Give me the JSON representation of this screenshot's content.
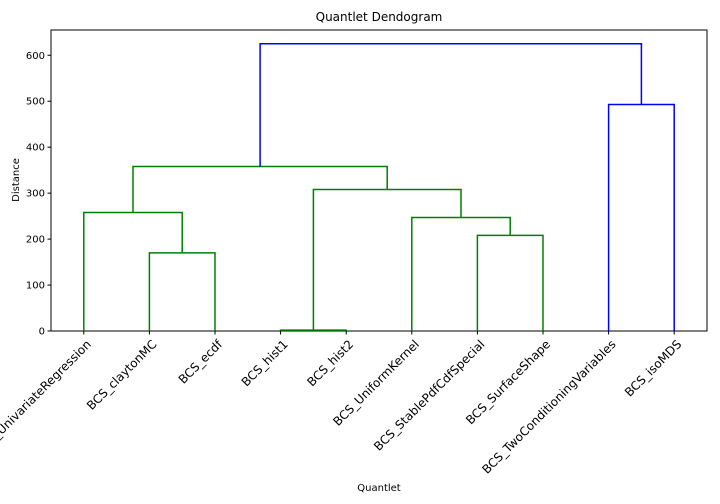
{
  "chart_data": {
    "type": "dendrogram",
    "title": "Quantlet Dendogram",
    "xlabel": "Quantlet",
    "ylabel": "Distance",
    "ylim": [
      0,
      655
    ],
    "yticks": [
      0,
      100,
      200,
      300,
      400,
      500,
      600
    ],
    "grid": false,
    "leaves": [
      "BCS_UnivariateRegression",
      "BCS_claytonMC",
      "BCS_ecdf",
      "BCS_hist1",
      "BCS_hist2",
      "BCS_UniformKernel",
      "BCS_StablePdfCdfSpecial",
      "BCS_SurfaceShape",
      "BCS_TwoConditioningVariables",
      "BCS_isoMDS"
    ],
    "colors": {
      "cluster_a": "#008000",
      "above_threshold": "#0000ff"
    },
    "links": [
      {
        "left": {
          "leaf": 1
        },
        "right": {
          "leaf": 2
        },
        "height": 170,
        "color": "cluster_a"
      },
      {
        "left": {
          "leaf": 0
        },
        "right": {
          "link": 0
        },
        "height": 258,
        "color": "cluster_a"
      },
      {
        "left": {
          "leaf": 3
        },
        "right": {
          "leaf": 4
        },
        "height": 2,
        "color": "cluster_a"
      },
      {
        "left": {
          "leaf": 6
        },
        "right": {
          "leaf": 7
        },
        "height": 208,
        "color": "cluster_a"
      },
      {
        "left": {
          "leaf": 5
        },
        "right": {
          "link": 3
        },
        "height": 247,
        "color": "cluster_a"
      },
      {
        "left": {
          "link": 2
        },
        "right": {
          "link": 4
        },
        "height": 308,
        "color": "cluster_a"
      },
      {
        "left": {
          "link": 1
        },
        "right": {
          "link": 5
        },
        "height": 358,
        "color": "cluster_a"
      },
      {
        "left": {
          "leaf": 8
        },
        "right": {
          "leaf": 9
        },
        "height": 493,
        "color": "above_threshold"
      },
      {
        "left": {
          "link": 6
        },
        "right": {
          "link": 7
        },
        "height": 625,
        "color": "above_threshold"
      }
    ]
  }
}
